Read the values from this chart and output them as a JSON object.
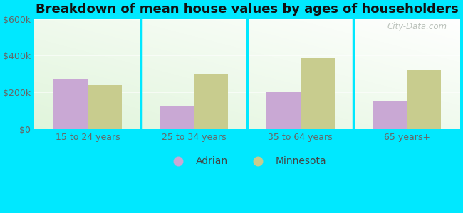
{
  "title": "Breakdown of mean house values by ages of householders",
  "categories": [
    "15 to 24 years",
    "25 to 34 years",
    "35 to 64 years",
    "65 years+"
  ],
  "adrian_values": [
    275000,
    125000,
    200000,
    155000
  ],
  "minnesota_values": [
    240000,
    300000,
    385000,
    325000
  ],
  "adrian_color": "#c9a8d4",
  "minnesota_color": "#c8cc8e",
  "ylim": [
    0,
    600000
  ],
  "yticks": [
    0,
    200000,
    400000,
    600000
  ],
  "ytick_labels": [
    "$0",
    "$200k",
    "$400k",
    "$600k"
  ],
  "bar_width": 0.32,
  "outer_color": "#00e8ff",
  "legend_labels": [
    "Adrian",
    "Minnesota"
  ],
  "watermark": "City-Data.com",
  "title_fontsize": 13,
  "tick_fontsize": 9,
  "legend_fontsize": 10,
  "divider_color": "#00e8ff",
  "grad_top": "#f0f9f0",
  "grad_bottom": "#e8f5e0"
}
